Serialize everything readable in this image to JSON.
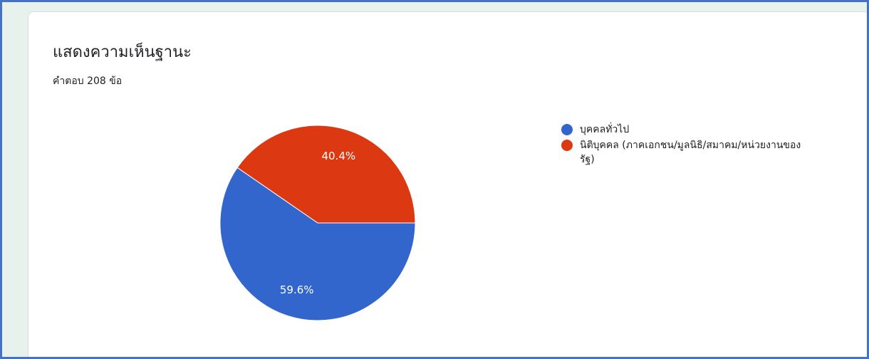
{
  "title": "แสดงความเห็นฐานะ",
  "subtitle": "คำตอบ 208 ข้อ",
  "chart_data": {
    "type": "pie",
    "categories": [
      "บุคคลทั่วไป",
      "นิติบุคคล (ภาคเอกชน/มูลนิธิ/สมาคม/หน่วยงานของรัฐ)"
    ],
    "values": [
      59.6,
      40.4
    ],
    "labels": [
      "59.6%",
      "40.4%"
    ],
    "colors": [
      "#3366cc",
      "#dc3912"
    ],
    "legend_position": "right"
  }
}
